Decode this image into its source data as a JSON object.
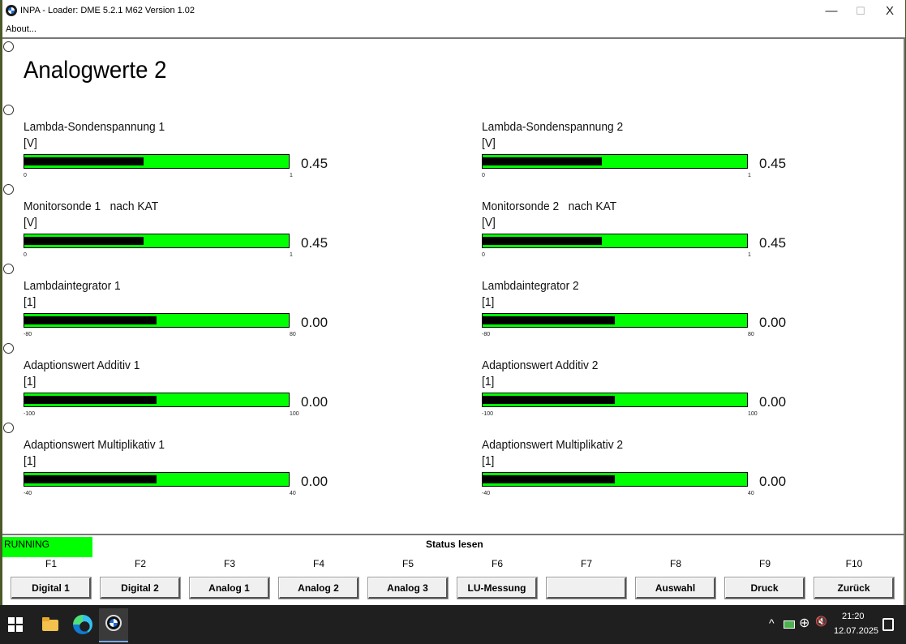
{
  "window": {
    "title": "INPA - Loader: DME 5.2.1 M62 Version 1.02",
    "minimize_glyph": "—",
    "maximize_glyph": "☐",
    "close_glyph": "X"
  },
  "menu": {
    "about": "About..."
  },
  "page": {
    "title": "Analogwerte 2"
  },
  "gauges": [
    {
      "label": "Lambda-Sondenspannung 1",
      "unit": "[V]",
      "value": "0.45",
      "min": "0",
      "max": "1",
      "level": 0.45
    },
    {
      "label": "Lambda-Sondenspannung 2",
      "unit": "[V]",
      "value": "0.45",
      "min": "0",
      "max": "1",
      "level": 0.45
    },
    {
      "label": "Monitorsonde 1   nach KAT",
      "unit": "[V]",
      "value": "0.45",
      "min": "0",
      "max": "1",
      "level": 0.45
    },
    {
      "label": "Monitorsonde 2   nach KAT",
      "unit": "[V]",
      "value": "0.45",
      "min": "0",
      "max": "1",
      "level": 0.45
    },
    {
      "label": "Lambdaintegrator 1",
      "unit": "[1]",
      "value": "0.00",
      "min": "-80",
      "max": "80",
      "level": 0.5
    },
    {
      "label": "Lambdaintegrator 2",
      "unit": "[1]",
      "value": "0.00",
      "min": "-80",
      "max": "80",
      "level": 0.5
    },
    {
      "label": "Adaptionswert Additiv 1",
      "unit": "[1]",
      "value": "0.00",
      "min": "-100",
      "max": "100",
      "level": 0.5
    },
    {
      "label": "Adaptionswert Additiv 2",
      "unit": "[1]",
      "value": "0.00",
      "min": "-100",
      "max": "100",
      "level": 0.5
    },
    {
      "label": "Adaptionswert Multiplikativ 1",
      "unit": "[1]",
      "value": "0.00",
      "min": "-40",
      "max": "40",
      "level": 0.5
    },
    {
      "label": "Adaptionswert Multiplikativ 2",
      "unit": "[1]",
      "value": "0.00",
      "min": "-40",
      "max": "40",
      "level": 0.5
    }
  ],
  "status": {
    "running": "RUNNING",
    "text": "Status lesen"
  },
  "fkeys": [
    {
      "key": "F1",
      "label": "Digital 1"
    },
    {
      "key": "F2",
      "label": "Digital 2"
    },
    {
      "key": "F3",
      "label": "Analog 1"
    },
    {
      "key": "F4",
      "label": "Analog 2"
    },
    {
      "key": "F5",
      "label": "Analog 3"
    },
    {
      "key": "F6",
      "label": "LU-Messung"
    },
    {
      "key": "F7",
      "label": ""
    },
    {
      "key": "F8",
      "label": "Auswahl"
    },
    {
      "key": "F9",
      "label": "Druck"
    },
    {
      "key": "F10",
      "label": "Zurück"
    }
  ],
  "taskbar": {
    "tray_chevron": "^",
    "tray_network": "⊕",
    "tray_volume": "🔇",
    "time": "21:20",
    "date": "12.07.2025"
  }
}
